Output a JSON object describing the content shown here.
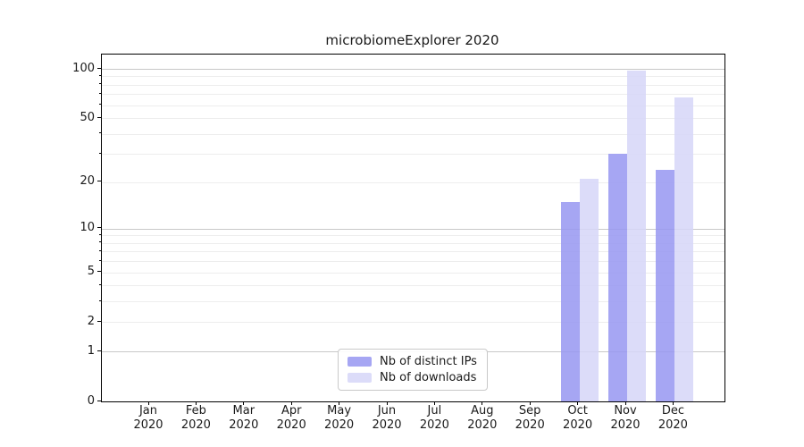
{
  "chart_data": {
    "type": "bar",
    "title": "microbiomeExplorer 2020",
    "categories": [
      "Jan 2020",
      "Feb 2020",
      "Mar 2020",
      "Apr 2020",
      "May 2020",
      "Jun 2020",
      "Jul 2020",
      "Aug 2020",
      "Sep 2020",
      "Oct 2020",
      "Nov 2020",
      "Dec 2020"
    ],
    "series": [
      {
        "name": "Nb of distinct IPs",
        "color": "#9797f1",
        "values": [
          0,
          0,
          0,
          0,
          0,
          0,
          0,
          0,
          0,
          15,
          30,
          24
        ]
      },
      {
        "name": "Nb of downloads",
        "color": "#d6d6f8",
        "values": [
          0,
          0,
          0,
          0,
          0,
          0,
          0,
          0,
          0,
          21,
          97,
          67
        ]
      }
    ],
    "bar_opacity": 0.85,
    "yscale": "log1p (position = log10(1+v)/log10(101))",
    "ylim": [
      0,
      122
    ],
    "yticks": [
      0,
      1,
      2,
      5,
      10,
      20,
      50,
      100
    ],
    "major_gridlines": [
      1,
      10,
      100
    ],
    "minor_gridlines": [
      2,
      3,
      4,
      5,
      6,
      7,
      8,
      9,
      20,
      30,
      40,
      50,
      60,
      70,
      80,
      90
    ],
    "grid": true,
    "legend_position": "lower center",
    "xlabel": "",
    "ylabel": ""
  },
  "colors": {
    "major_grid": "#c8c8c8",
    "minor_grid": "#ededed",
    "spine": "#000000",
    "text": "#1a1a1a"
  }
}
